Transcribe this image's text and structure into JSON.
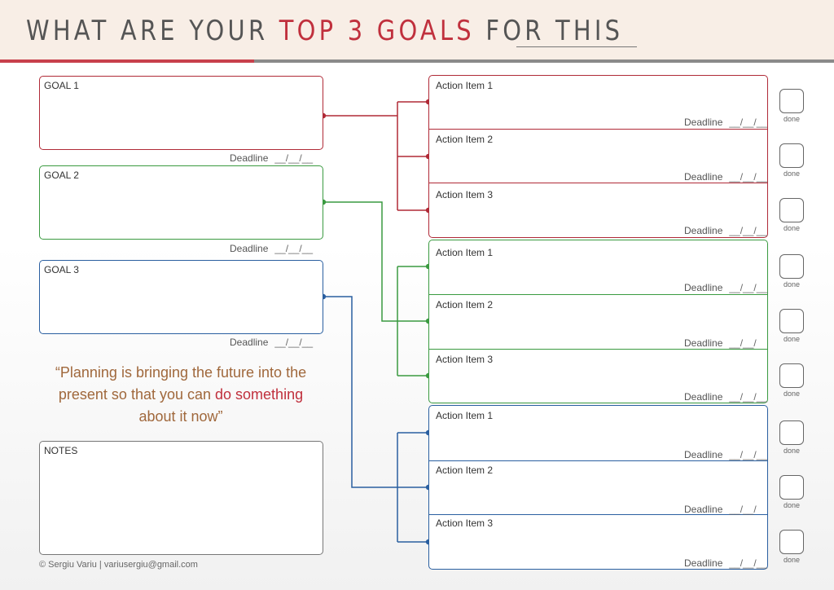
{
  "header": {
    "title_part1": "WHAT ARE YOUR ",
    "title_highlight": "TOP 3 GOALS",
    "title_part2": " FOR THIS"
  },
  "colors": {
    "goal1": "#b02a37",
    "goal2": "#3a9a40",
    "goal3": "#2a5fa0",
    "accent": "#c0303d"
  },
  "goals": [
    {
      "label": "GOAL 1",
      "deadline_label": "Deadline",
      "deadline_blank": "__/__/__"
    },
    {
      "label": "GOAL 2",
      "deadline_label": "Deadline",
      "deadline_blank": "__/__/__"
    },
    {
      "label": "GOAL 3",
      "deadline_label": "Deadline",
      "deadline_blank": "__/__/__"
    }
  ],
  "action_groups": [
    {
      "items": [
        {
          "label": "Action Item 1",
          "deadline_label": "Deadline",
          "deadline_blank": "__/__/__"
        },
        {
          "label": "Action Item 2",
          "deadline_label": "Deadline",
          "deadline_blank": "__/__/__"
        },
        {
          "label": "Action Item 3",
          "deadline_label": "Deadline",
          "deadline_blank": "__/__/__"
        }
      ]
    },
    {
      "items": [
        {
          "label": "Action Item 1",
          "deadline_label": "Deadline",
          "deadline_blank": "__/__/__"
        },
        {
          "label": "Action Item 2",
          "deadline_label": "Deadline",
          "deadline_blank": "__/__/"
        },
        {
          "label": "Action Item 3",
          "deadline_label": "Deadline",
          "deadline_blank": "__/__/__"
        }
      ]
    },
    {
      "items": [
        {
          "label": "Action Item 1",
          "deadline_label": "Deadline",
          "deadline_blank": "__/__/__"
        },
        {
          "label": "Action Item 2",
          "deadline_label": "Deadline",
          "deadline_blank": "__/__/"
        },
        {
          "label": "Action Item 3",
          "deadline_label": "Deadline",
          "deadline_blank": "__/__/__"
        }
      ]
    }
  ],
  "done_label": "done",
  "quote": {
    "part1": "“Planning is bringing the future into the present so that you can ",
    "highlight": "do something",
    "part2": " about it now”"
  },
  "notes": {
    "label": "NOTES"
  },
  "footer": {
    "credit": "© Sergiu Variu | variusergiu@gmail.com"
  }
}
